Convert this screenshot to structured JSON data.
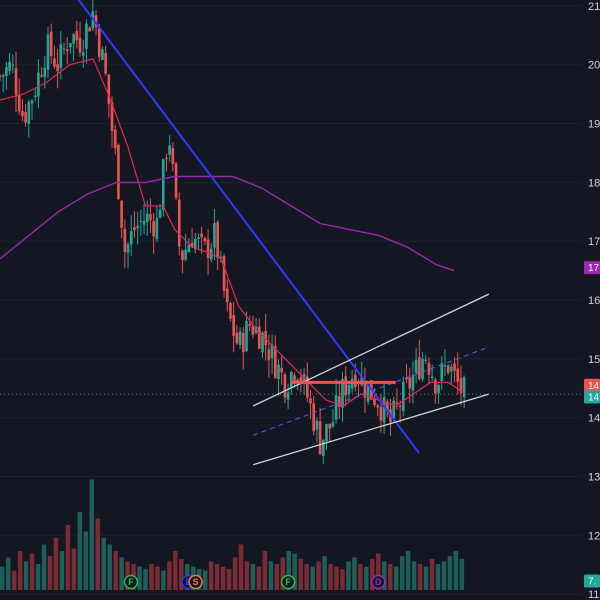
{
  "colors": {
    "background": "#131722",
    "grid": "#1e222d",
    "up": "#26a69a",
    "down": "#ef5350",
    "vol_up": "#1f5f59",
    "vol_down": "#7a2b34",
    "trendline": "#2a3cff",
    "channel": "#d1d4dc",
    "channel_mid": "#5060ff",
    "ma_short": "#e9264e",
    "ma_long": "#9c27b0",
    "last_price_line": "#26a69a",
    "axis_text": "#d1d4dc"
  },
  "chart_data": {
    "type": "candlestick",
    "title": "",
    "xlabel": "",
    "ylabel": "",
    "grid": false,
    "ylim": [
      10.9,
      21.1
    ],
    "y_ticks": [
      "21",
      "20",
      "19",
      "18",
      "17",
      "16",
      "15",
      "14",
      "13",
      "12",
      "11"
    ],
    "y_tick_values": [
      21,
      20,
      19,
      18,
      17,
      16,
      15,
      14,
      13,
      12,
      11
    ],
    "x_range": [
      0,
      100
    ],
    "price_series": [
      {
        "x": 0,
        "price": 19.8
      },
      {
        "x": 2,
        "price": 20.0
      },
      {
        "x": 4,
        "price": 19.1
      },
      {
        "x": 6,
        "price": 19.6
      },
      {
        "x": 8,
        "price": 20.3
      },
      {
        "x": 10,
        "price": 20.0
      },
      {
        "x": 12,
        "price": 20.5
      },
      {
        "x": 14,
        "price": 20.4
      },
      {
        "x": 16,
        "price": 20.9
      },
      {
        "x": 18,
        "price": 19.9
      },
      {
        "x": 20,
        "price": 18.3
      },
      {
        "x": 21.5,
        "price": 16.8
      },
      {
        "x": 23,
        "price": 17.2
      },
      {
        "x": 25,
        "price": 17.4
      },
      {
        "x": 27,
        "price": 17.3
      },
      {
        "x": 29,
        "price": 18.9
      },
      {
        "x": 31,
        "price": 16.7
      },
      {
        "x": 33,
        "price": 17.1
      },
      {
        "x": 35,
        "price": 16.8
      },
      {
        "x": 37,
        "price": 17.1
      },
      {
        "x": 39,
        "price": 15.8
      },
      {
        "x": 41,
        "price": 15.2
      },
      {
        "x": 43,
        "price": 15.6
      },
      {
        "x": 45,
        "price": 15.4
      },
      {
        "x": 47,
        "price": 15.0
      },
      {
        "x": 49,
        "price": 14.6
      },
      {
        "x": 51,
        "price": 14.9
      },
      {
        "x": 53,
        "price": 14.3
      },
      {
        "x": 55,
        "price": 13.6
      },
      {
        "x": 57,
        "price": 13.9
      },
      {
        "x": 59,
        "price": 14.5
      },
      {
        "x": 61,
        "price": 14.8
      },
      {
        "x": 63,
        "price": 14.5
      },
      {
        "x": 65,
        "price": 14.3
      },
      {
        "x": 67,
        "price": 13.9
      },
      {
        "x": 69,
        "price": 14.3
      },
      {
        "x": 71,
        "price": 14.7
      },
      {
        "x": 73,
        "price": 15.1
      },
      {
        "x": 75,
        "price": 14.6
      },
      {
        "x": 77,
        "price": 14.9
      },
      {
        "x": 79,
        "price": 14.5
      },
      {
        "x": 80,
        "price": 14.4
      }
    ],
    "ma_short": [
      {
        "x": 0,
        "y": 19.4
      },
      {
        "x": 4,
        "y": 19.5
      },
      {
        "x": 8,
        "y": 19.7
      },
      {
        "x": 12,
        "y": 20.0
      },
      {
        "x": 16,
        "y": 20.1
      },
      {
        "x": 19,
        "y": 19.4
      },
      {
        "x": 22,
        "y": 18.6
      },
      {
        "x": 25,
        "y": 17.6
      },
      {
        "x": 28,
        "y": 17.6
      },
      {
        "x": 30,
        "y": 17.2
      },
      {
        "x": 33,
        "y": 16.9
      },
      {
        "x": 36,
        "y": 16.8
      },
      {
        "x": 38,
        "y": 16.7
      },
      {
        "x": 41,
        "y": 15.9
      },
      {
        "x": 44,
        "y": 15.5
      },
      {
        "x": 47,
        "y": 15.2
      },
      {
        "x": 50,
        "y": 14.9
      },
      {
        "x": 53,
        "y": 14.6
      },
      {
        "x": 56,
        "y": 14.3
      },
      {
        "x": 59,
        "y": 14.2
      },
      {
        "x": 62,
        "y": 14.4
      },
      {
        "x": 65,
        "y": 14.3
      },
      {
        "x": 68,
        "y": 14.2
      },
      {
        "x": 71,
        "y": 14.4
      },
      {
        "x": 74,
        "y": 14.6
      },
      {
        "x": 77,
        "y": 14.6
      },
      {
        "x": 80,
        "y": 14.4
      }
    ],
    "ma_long": [
      {
        "x": 0,
        "y": 16.7
      },
      {
        "x": 5,
        "y": 17.1
      },
      {
        "x": 10,
        "y": 17.5
      },
      {
        "x": 15,
        "y": 17.8
      },
      {
        "x": 20,
        "y": 18.0
      },
      {
        "x": 25,
        "y": 18.0
      },
      {
        "x": 30,
        "y": 18.1
      },
      {
        "x": 35,
        "y": 18.1
      },
      {
        "x": 40,
        "y": 18.1
      },
      {
        "x": 45,
        "y": 17.9
      },
      {
        "x": 50,
        "y": 17.6
      },
      {
        "x": 55,
        "y": 17.3
      },
      {
        "x": 60,
        "y": 17.2
      },
      {
        "x": 65,
        "y": 17.1
      },
      {
        "x": 70,
        "y": 16.9
      },
      {
        "x": 75,
        "y": 16.6
      },
      {
        "x": 78,
        "y": 16.5
      }
    ],
    "trendline": {
      "from": [
        12,
        21.3
      ],
      "to": [
        72,
        13.4
      ]
    },
    "channel": {
      "upper": {
        "from": [
          43.5,
          14.2
        ],
        "to": [
          84,
          16.1
        ]
      },
      "lower": {
        "from": [
          43.5,
          13.2
        ],
        "to": [
          84,
          14.4
        ]
      },
      "mid": {
        "from": [
          43.5,
          13.7
        ],
        "to": [
          84,
          15.2
        ]
      }
    },
    "level_line": {
      "x1": 50,
      "x2": 68,
      "y": 14.6
    },
    "last_price": 14.4,
    "volume": {
      "values": [
        0.18,
        0.25,
        0.15,
        0.3,
        0.22,
        0.28,
        0.2,
        0.35,
        0.26,
        0.4,
        0.3,
        0.5,
        0.32,
        0.6,
        0.45,
        0.85,
        0.55,
        0.4,
        0.35,
        0.3,
        0.25,
        0.22,
        0.2,
        0.18,
        0.16,
        0.2,
        0.18,
        0.15,
        0.22,
        0.3,
        0.24,
        0.2,
        0.18,
        0.16,
        0.15,
        0.22,
        0.2,
        0.18,
        0.16,
        0.25,
        0.35,
        0.22,
        0.2,
        0.18,
        0.3,
        0.22,
        0.2,
        0.25,
        0.3,
        0.28,
        0.24,
        0.2,
        0.18,
        0.22,
        0.26,
        0.2,
        0.18,
        0.16,
        0.22,
        0.25,
        0.2,
        0.18,
        0.24,
        0.28,
        0.22,
        0.2,
        0.18,
        0.26,
        0.3,
        0.22,
        0.2,
        0.18,
        0.24,
        0.2,
        0.22,
        0.26,
        0.3,
        0.24
      ],
      "max_volume_fraction_of_pane": 1.0
    },
    "events": [
      {
        "label": "F",
        "x": 22.5,
        "color": "#2dbd4f"
      },
      {
        "label": "E",
        "x": 32.4,
        "color": "#1e3cff"
      },
      {
        "label": "S",
        "x": 33.6,
        "color": "#f57c3a"
      },
      {
        "label": "F",
        "x": 49.5,
        "color": "#2dbd4f"
      },
      {
        "label": "D",
        "x": 65,
        "color": "#9c27b0"
      }
    ],
    "axis_badges": [
      {
        "text": "17",
        "price": 16.55,
        "color": "#9c27b0"
      },
      {
        "text": "14",
        "price": 14.55,
        "color": "#ef5350"
      },
      {
        "text": "14",
        "price": 14.35,
        "color": "#26a69a"
      },
      {
        "text": "7.",
        "price": null,
        "volume_badge": true,
        "color": "#26a69a"
      }
    ]
  }
}
